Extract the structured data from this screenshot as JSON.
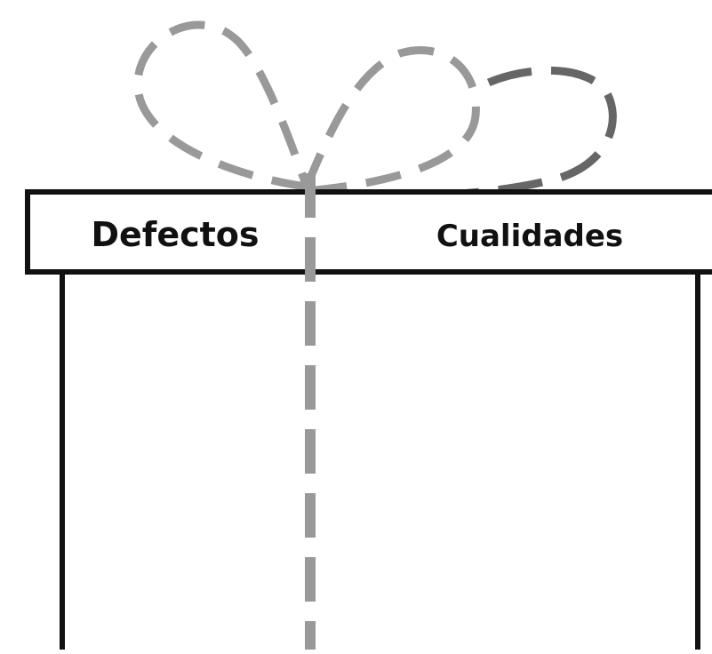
{
  "labels": {
    "left": "Defectos",
    "right": "Cualidades"
  }
}
